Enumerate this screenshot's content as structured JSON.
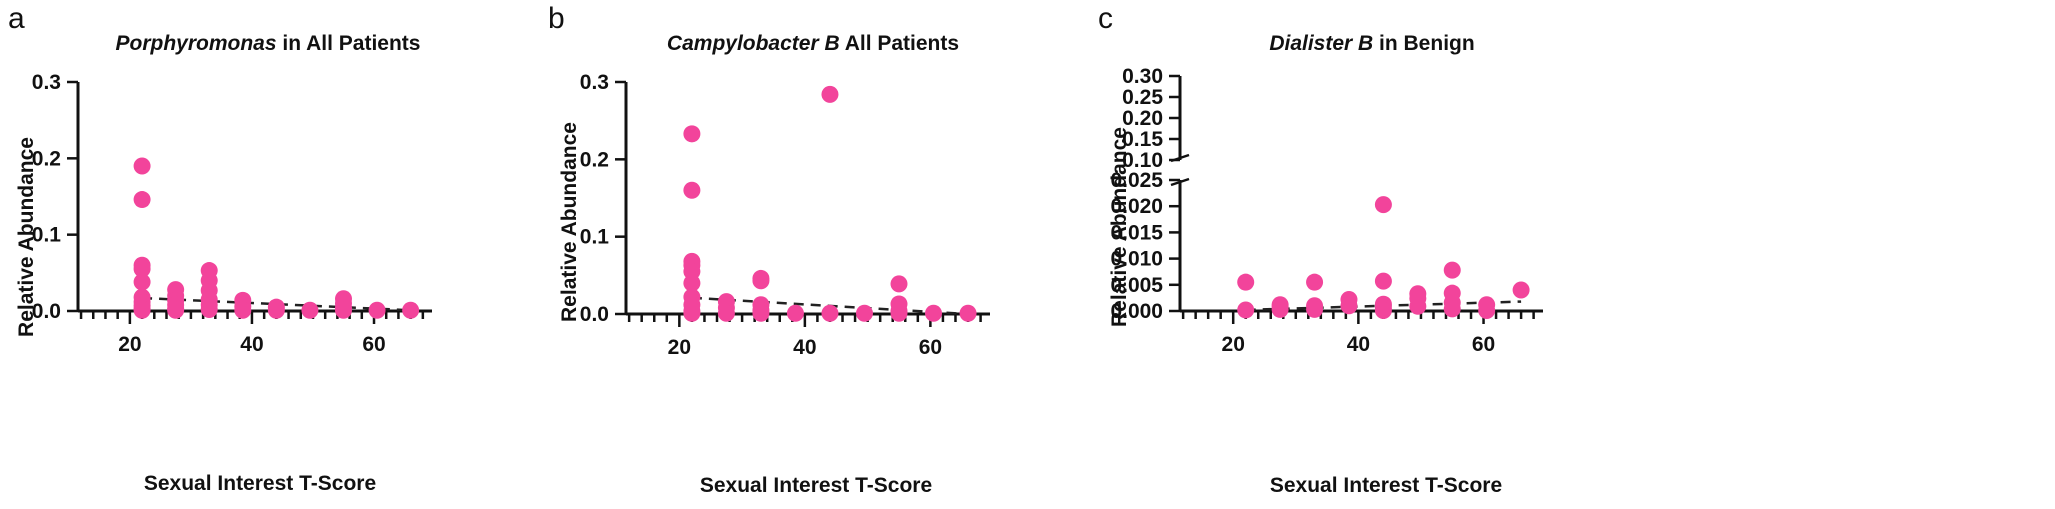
{
  "colors": {
    "point": "#f2449b",
    "axis": "#111111",
    "trend": "#222222"
  },
  "chart_data": [
    {
      "type": "scatter",
      "panel": "a",
      "title_italic": "Porphyromonas",
      "title_rest": " in All Patients",
      "xlabel": "Sexual Interest T-Score",
      "ylabel": "Relative Abundance",
      "xlim": [
        10,
        70
      ],
      "ylim": [
        0,
        0.3
      ],
      "xticks": [
        20,
        40,
        60
      ],
      "yticks": [
        0.0,
        0.1,
        0.2,
        0.3
      ],
      "ytick_labels": [
        "0.0",
        "0.1",
        "0.2",
        "0.3"
      ],
      "trend": {
        "x": [
          22,
          66
        ],
        "y": [
          0.017,
          0.001
        ]
      },
      "points": [
        [
          22,
          0.19
        ],
        [
          22,
          0.146
        ],
        [
          22,
          0.06
        ],
        [
          22,
          0.055
        ],
        [
          22,
          0.038
        ],
        [
          22,
          0.018
        ],
        [
          22,
          0.012
        ],
        [
          22,
          0.007
        ],
        [
          22,
          0.003
        ],
        [
          22,
          0.001
        ],
        [
          27.5,
          0.028
        ],
        [
          27.5,
          0.02
        ],
        [
          27.5,
          0.014
        ],
        [
          27.5,
          0.008
        ],
        [
          27.5,
          0.003
        ],
        [
          27.5,
          0.001
        ],
        [
          33,
          0.053
        ],
        [
          33,
          0.04
        ],
        [
          33,
          0.027
        ],
        [
          33,
          0.015
        ],
        [
          33,
          0.008
        ],
        [
          33,
          0.002
        ],
        [
          38.5,
          0.014
        ],
        [
          38.5,
          0.006
        ],
        [
          38.5,
          0.001
        ],
        [
          44,
          0.005
        ],
        [
          44,
          0.001
        ],
        [
          49.5,
          0.001
        ],
        [
          55,
          0.016
        ],
        [
          55,
          0.01
        ],
        [
          55,
          0.004
        ],
        [
          55,
          0.001
        ],
        [
          60.5,
          0.001
        ],
        [
          66,
          0.001
        ]
      ]
    },
    {
      "type": "scatter",
      "panel": "b",
      "title_italic": "Campylobacter B",
      "title_rest": " All Patients",
      "xlabel": "Sexual Interest T-Score",
      "ylabel": "Relative Abundance",
      "xlim": [
        10,
        70
      ],
      "ylim": [
        0,
        0.3
      ],
      "xticks": [
        20,
        40,
        60
      ],
      "yticks": [
        0.0,
        0.1,
        0.2,
        0.3
      ],
      "ytick_labels": [
        "0.0",
        "0.1",
        "0.2",
        "0.3"
      ],
      "trend": {
        "x": [
          22,
          66
        ],
        "y": [
          0.021,
          0.0
        ]
      },
      "points": [
        [
          22,
          0.233
        ],
        [
          22,
          0.16
        ],
        [
          22,
          0.068
        ],
        [
          22,
          0.063
        ],
        [
          22,
          0.055
        ],
        [
          22,
          0.04
        ],
        [
          22,
          0.022
        ],
        [
          22,
          0.012
        ],
        [
          22,
          0.004
        ],
        [
          22,
          0.001
        ],
        [
          27.5,
          0.016
        ],
        [
          27.5,
          0.008
        ],
        [
          27.5,
          0.001
        ],
        [
          33,
          0.046
        ],
        [
          33,
          0.043
        ],
        [
          33,
          0.012
        ],
        [
          33,
          0.005
        ],
        [
          33,
          0.001
        ],
        [
          38.5,
          0.001
        ],
        [
          44,
          0.284
        ],
        [
          44,
          0.001
        ],
        [
          49.5,
          0.001
        ],
        [
          55,
          0.039
        ],
        [
          55,
          0.013
        ],
        [
          55,
          0.004
        ],
        [
          55,
          0.001
        ],
        [
          60.5,
          0.001
        ],
        [
          66,
          0.001
        ]
      ]
    },
    {
      "type": "scatter",
      "panel": "c",
      "title_italic": "Dialister B",
      "title_rest": " in Benign",
      "xlabel": "Sexual Interest T-Score",
      "ylabel": "Relative Abundance",
      "xlim": [
        10,
        70
      ],
      "y_broken": true,
      "lower_ylim": [
        0,
        0.025
      ],
      "upper_ylim": [
        0.1,
        0.3
      ],
      "xticks": [
        20,
        40,
        60
      ],
      "lower_yticks": [
        0.0,
        0.005,
        0.01,
        0.015,
        0.02,
        0.025
      ],
      "lower_ytick_labels": [
        "0.000",
        "0.005",
        "0.010",
        "0.015",
        "0.020",
        "0.025"
      ],
      "upper_yticks": [
        0.1,
        0.15,
        0.2,
        0.25,
        0.3
      ],
      "upper_ytick_labels": [
        "0.10",
        "0.15",
        "0.20",
        "0.25",
        "0.30"
      ],
      "trend": {
        "x": [
          22,
          66
        ],
        "y": [
          0.0002,
          0.0018
        ]
      },
      "points": [
        [
          22,
          0.0055
        ],
        [
          22,
          0.0002
        ],
        [
          27.5,
          0.0012
        ],
        [
          27.5,
          0.0008
        ],
        [
          27.5,
          0.0003
        ],
        [
          33,
          0.0055
        ],
        [
          33,
          0.001
        ],
        [
          33,
          0.0003
        ],
        [
          38.5,
          0.0022
        ],
        [
          38.5,
          0.001
        ],
        [
          44,
          0.0203
        ],
        [
          44,
          0.0057
        ],
        [
          44,
          0.0013
        ],
        [
          44,
          0.0006
        ],
        [
          44,
          0.0001
        ],
        [
          49.5,
          0.0033
        ],
        [
          49.5,
          0.0024
        ],
        [
          49.5,
          0.0009
        ],
        [
          55,
          0.0078
        ],
        [
          55,
          0.0034
        ],
        [
          55,
          0.0016
        ],
        [
          55,
          0.0004
        ],
        [
          60.5,
          0.0012
        ],
        [
          60.5,
          0.0001
        ],
        [
          66,
          0.004
        ]
      ]
    }
  ]
}
